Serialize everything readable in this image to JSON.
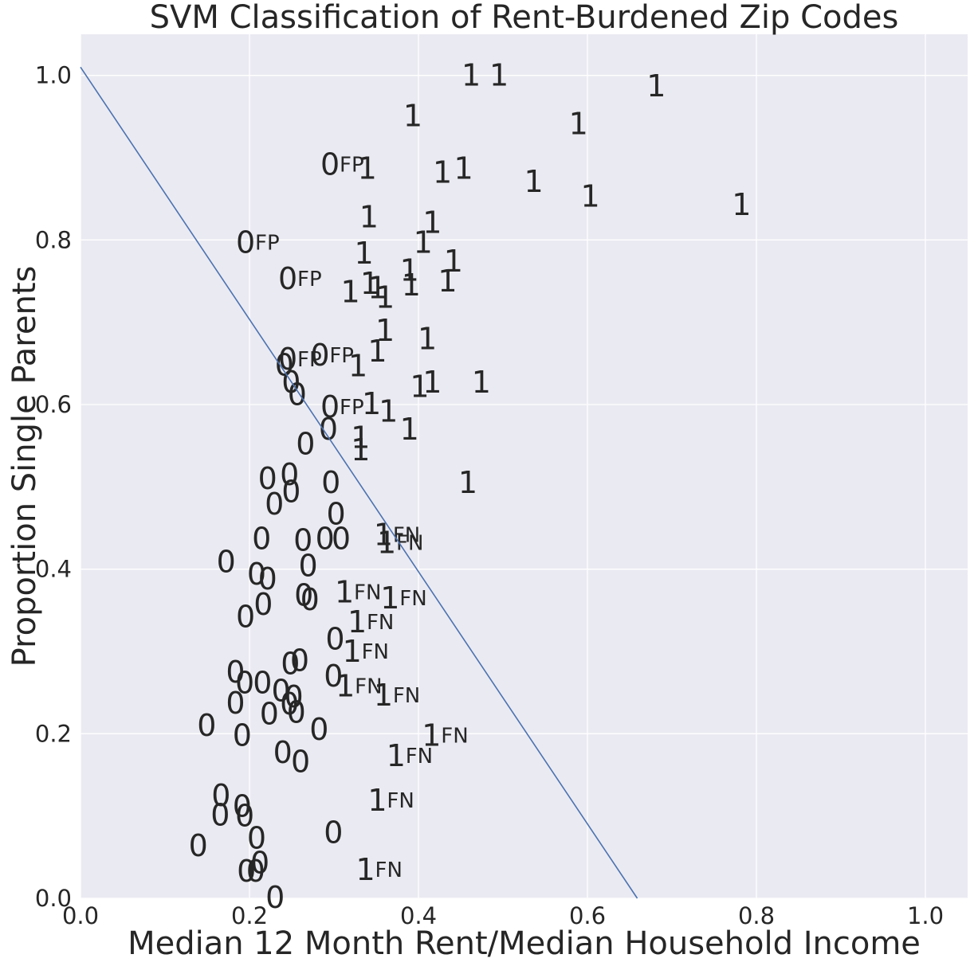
{
  "chart_data": {
    "type": "scatter",
    "title": "SVM Classification of Rent-Burdened Zip Codes",
    "xlabel": "Median 12 Month Rent/Median Household Income",
    "ylabel": "Proportion Single Parents",
    "xlim": [
      0.0,
      1.05
    ],
    "ylim": [
      0.0,
      1.05
    ],
    "xticks": [
      {
        "value": 0.0,
        "label": "0.0"
      },
      {
        "value": 0.2,
        "label": "0.2"
      },
      {
        "value": 0.4,
        "label": "0.4"
      },
      {
        "value": 0.6,
        "label": "0.6"
      },
      {
        "value": 0.8,
        "label": "0.8"
      },
      {
        "value": 1.0,
        "label": "1.0"
      }
    ],
    "yticks": [
      {
        "value": 0.0,
        "label": "0.0"
      },
      {
        "value": 0.2,
        "label": "0.2"
      },
      {
        "value": 0.4,
        "label": "0.4"
      },
      {
        "value": 0.6,
        "label": "0.6"
      },
      {
        "value": 0.8,
        "label": "0.8"
      },
      {
        "value": 1.0,
        "label": "1.0"
      }
    ],
    "grid": true,
    "background_color": "#EAEAF2",
    "grid_color": "#FFFFFF",
    "text_color": "#262626",
    "decision_boundary": {
      "x": [
        0.0,
        0.659
      ],
      "y": [
        1.01,
        0.0
      ],
      "color": "#4C72B0"
    },
    "points": [
      {
        "x": 0.451,
        "y": 1.0,
        "label": "1",
        "flag": ""
      },
      {
        "x": 0.484,
        "y": 1.0,
        "label": "1",
        "flag": ""
      },
      {
        "x": 0.67,
        "y": 0.987,
        "label": "1",
        "flag": ""
      },
      {
        "x": 0.382,
        "y": 0.951,
        "label": "1",
        "flag": ""
      },
      {
        "x": 0.578,
        "y": 0.941,
        "label": "1",
        "flag": ""
      },
      {
        "x": 0.284,
        "y": 0.892,
        "label": "0",
        "flag": "FP"
      },
      {
        "x": 0.328,
        "y": 0.887,
        "label": "1",
        "flag": ""
      },
      {
        "x": 0.417,
        "y": 0.882,
        "label": "1",
        "flag": ""
      },
      {
        "x": 0.442,
        "y": 0.887,
        "label": "1",
        "flag": ""
      },
      {
        "x": 0.525,
        "y": 0.871,
        "label": "1",
        "flag": ""
      },
      {
        "x": 0.592,
        "y": 0.853,
        "label": "1",
        "flag": ""
      },
      {
        "x": 0.771,
        "y": 0.843,
        "label": "1",
        "flag": ""
      },
      {
        "x": 0.33,
        "y": 0.828,
        "label": "1",
        "flag": ""
      },
      {
        "x": 0.405,
        "y": 0.821,
        "label": "1",
        "flag": ""
      },
      {
        "x": 0.184,
        "y": 0.797,
        "label": "0",
        "flag": "FP"
      },
      {
        "x": 0.394,
        "y": 0.797,
        "label": "1",
        "flag": ""
      },
      {
        "x": 0.324,
        "y": 0.784,
        "label": "1",
        "flag": ""
      },
      {
        "x": 0.43,
        "y": 0.774,
        "label": "1",
        "flag": ""
      },
      {
        "x": 0.234,
        "y": 0.753,
        "label": "0",
        "flag": "FP"
      },
      {
        "x": 0.378,
        "y": 0.763,
        "label": "1",
        "flag": ""
      },
      {
        "x": 0.331,
        "y": 0.747,
        "label": "1",
        "flag": ""
      },
      {
        "x": 0.34,
        "y": 0.742,
        "label": "1",
        "flag": ""
      },
      {
        "x": 0.38,
        "y": 0.745,
        "label": "1",
        "flag": ""
      },
      {
        "x": 0.423,
        "y": 0.75,
        "label": "1",
        "flag": ""
      },
      {
        "x": 0.308,
        "y": 0.737,
        "label": "1",
        "flag": ""
      },
      {
        "x": 0.349,
        "y": 0.73,
        "label": "1",
        "flag": ""
      },
      {
        "x": 0.349,
        "y": 0.69,
        "label": "1",
        "flag": ""
      },
      {
        "x": 0.399,
        "y": 0.68,
        "label": "1",
        "flag": ""
      },
      {
        "x": 0.34,
        "y": 0.665,
        "label": "1",
        "flag": ""
      },
      {
        "x": 0.272,
        "y": 0.66,
        "label": "0",
        "flag": "FP"
      },
      {
        "x": 0.234,
        "y": 0.655,
        "label": "0",
        "flag": "FP"
      },
      {
        "x": 0.23,
        "y": 0.648,
        "label": "0",
        "flag": ""
      },
      {
        "x": 0.317,
        "y": 0.647,
        "label": "1",
        "flag": ""
      },
      {
        "x": 0.238,
        "y": 0.627,
        "label": "0",
        "flag": ""
      },
      {
        "x": 0.463,
        "y": 0.627,
        "label": "1",
        "flag": ""
      },
      {
        "x": 0.39,
        "y": 0.622,
        "label": "1",
        "flag": ""
      },
      {
        "x": 0.405,
        "y": 0.627,
        "label": "1",
        "flag": ""
      },
      {
        "x": 0.245,
        "y": 0.612,
        "label": "0",
        "flag": ""
      },
      {
        "x": 0.284,
        "y": 0.597,
        "label": "0",
        "flag": "FP"
      },
      {
        "x": 0.333,
        "y": 0.601,
        "label": "1",
        "flag": ""
      },
      {
        "x": 0.353,
        "y": 0.592,
        "label": "1",
        "flag": ""
      },
      {
        "x": 0.282,
        "y": 0.57,
        "label": "0",
        "flag": ""
      },
      {
        "x": 0.378,
        "y": 0.57,
        "label": "1",
        "flag": ""
      },
      {
        "x": 0.32,
        "y": 0.56,
        "label": "1",
        "flag": ""
      },
      {
        "x": 0.255,
        "y": 0.552,
        "label": "0",
        "flag": ""
      },
      {
        "x": 0.32,
        "y": 0.545,
        "label": "1",
        "flag": ""
      },
      {
        "x": 0.236,
        "y": 0.515,
        "label": "0",
        "flag": ""
      },
      {
        "x": 0.21,
        "y": 0.51,
        "label": "0",
        "flag": ""
      },
      {
        "x": 0.447,
        "y": 0.505,
        "label": "1",
        "flag": ""
      },
      {
        "x": 0.285,
        "y": 0.505,
        "label": "0",
        "flag": ""
      },
      {
        "x": 0.238,
        "y": 0.494,
        "label": "0",
        "flag": ""
      },
      {
        "x": 0.218,
        "y": 0.479,
        "label": "0",
        "flag": ""
      },
      {
        "x": 0.291,
        "y": 0.467,
        "label": "0",
        "flag": ""
      },
      {
        "x": 0.347,
        "y": 0.442,
        "label": "1",
        "flag": "FN"
      },
      {
        "x": 0.203,
        "y": 0.437,
        "label": "0",
        "flag": ""
      },
      {
        "x": 0.252,
        "y": 0.435,
        "label": "0",
        "flag": ""
      },
      {
        "x": 0.278,
        "y": 0.437,
        "label": "0",
        "flag": ""
      },
      {
        "x": 0.297,
        "y": 0.437,
        "label": "0",
        "flag": ""
      },
      {
        "x": 0.351,
        "y": 0.432,
        "label": "1",
        "flag": "FN"
      },
      {
        "x": 0.161,
        "y": 0.409,
        "label": "0",
        "flag": ""
      },
      {
        "x": 0.258,
        "y": 0.404,
        "label": "0",
        "flag": ""
      },
      {
        "x": 0.197,
        "y": 0.394,
        "label": "0",
        "flag": ""
      },
      {
        "x": 0.21,
        "y": 0.388,
        "label": "0",
        "flag": ""
      },
      {
        "x": 0.301,
        "y": 0.372,
        "label": "1",
        "flag": "FN"
      },
      {
        "x": 0.253,
        "y": 0.368,
        "label": "0",
        "flag": ""
      },
      {
        "x": 0.26,
        "y": 0.363,
        "label": "0",
        "flag": ""
      },
      {
        "x": 0.355,
        "y": 0.365,
        "label": "1",
        "flag": "FN"
      },
      {
        "x": 0.205,
        "y": 0.357,
        "label": "0",
        "flag": ""
      },
      {
        "x": 0.184,
        "y": 0.342,
        "label": "0",
        "flag": ""
      },
      {
        "x": 0.316,
        "y": 0.336,
        "label": "1",
        "flag": "FN"
      },
      {
        "x": 0.29,
        "y": 0.315,
        "label": "0",
        "flag": ""
      },
      {
        "x": 0.31,
        "y": 0.3,
        "label": "1",
        "flag": "FN"
      },
      {
        "x": 0.248,
        "y": 0.289,
        "label": "0",
        "flag": ""
      },
      {
        "x": 0.237,
        "y": 0.285,
        "label": "0",
        "flag": ""
      },
      {
        "x": 0.172,
        "y": 0.275,
        "label": "0",
        "flag": ""
      },
      {
        "x": 0.288,
        "y": 0.27,
        "label": "0",
        "flag": ""
      },
      {
        "x": 0.183,
        "y": 0.262,
        "label": "0",
        "flag": ""
      },
      {
        "x": 0.204,
        "y": 0.262,
        "label": "0",
        "flag": ""
      },
      {
        "x": 0.302,
        "y": 0.258,
        "label": "1",
        "flag": "FN"
      },
      {
        "x": 0.226,
        "y": 0.252,
        "label": "0",
        "flag": ""
      },
      {
        "x": 0.241,
        "y": 0.245,
        "label": "0",
        "flag": ""
      },
      {
        "x": 0.347,
        "y": 0.247,
        "label": "1",
        "flag": "FN"
      },
      {
        "x": 0.172,
        "y": 0.237,
        "label": "0",
        "flag": ""
      },
      {
        "x": 0.236,
        "y": 0.236,
        "label": "0",
        "flag": ""
      },
      {
        "x": 0.244,
        "y": 0.226,
        "label": "0",
        "flag": ""
      },
      {
        "x": 0.212,
        "y": 0.224,
        "label": "0",
        "flag": ""
      },
      {
        "x": 0.138,
        "y": 0.21,
        "label": "0",
        "flag": ""
      },
      {
        "x": 0.271,
        "y": 0.205,
        "label": "0",
        "flag": ""
      },
      {
        "x": 0.404,
        "y": 0.198,
        "label": "1",
        "flag": "FN"
      },
      {
        "x": 0.18,
        "y": 0.198,
        "label": "0",
        "flag": ""
      },
      {
        "x": 0.228,
        "y": 0.177,
        "label": "0",
        "flag": ""
      },
      {
        "x": 0.362,
        "y": 0.173,
        "label": "1",
        "flag": "FN"
      },
      {
        "x": 0.249,
        "y": 0.166,
        "label": "0",
        "flag": ""
      },
      {
        "x": 0.155,
        "y": 0.125,
        "label": "0",
        "flag": ""
      },
      {
        "x": 0.18,
        "y": 0.112,
        "label": "0",
        "flag": ""
      },
      {
        "x": 0.34,
        "y": 0.119,
        "label": "1",
        "flag": "FN"
      },
      {
        "x": 0.154,
        "y": 0.101,
        "label": "0",
        "flag": ""
      },
      {
        "x": 0.183,
        "y": 0.1,
        "label": "0",
        "flag": ""
      },
      {
        "x": 0.197,
        "y": 0.073,
        "label": "0",
        "flag": ""
      },
      {
        "x": 0.288,
        "y": 0.08,
        "label": "0",
        "flag": ""
      },
      {
        "x": 0.128,
        "y": 0.064,
        "label": "0",
        "flag": ""
      },
      {
        "x": 0.201,
        "y": 0.043,
        "label": "0",
        "flag": ""
      },
      {
        "x": 0.326,
        "y": 0.035,
        "label": "1",
        "flag": "FN"
      },
      {
        "x": 0.185,
        "y": 0.033,
        "label": "0",
        "flag": ""
      },
      {
        "x": 0.196,
        "y": 0.033,
        "label": "0",
        "flag": ""
      },
      {
        "x": 0.219,
        "y": 0.001,
        "label": "0",
        "flag": ""
      }
    ]
  }
}
